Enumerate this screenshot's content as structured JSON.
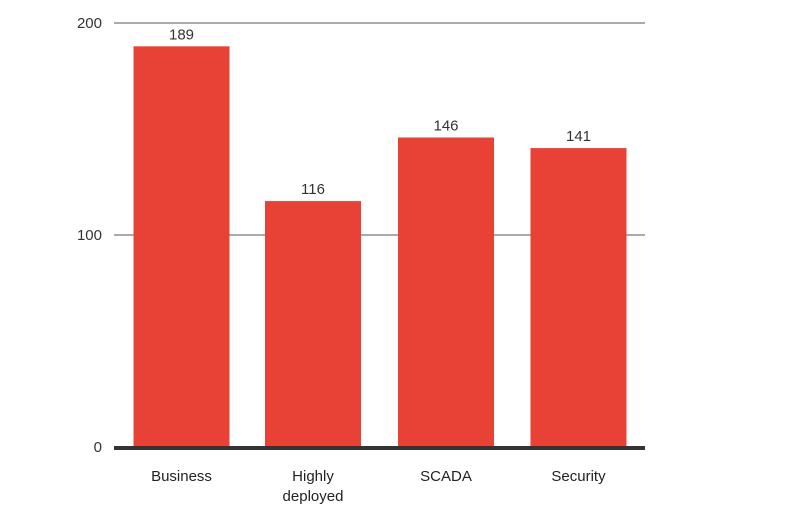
{
  "chart_data": {
    "type": "bar",
    "categories": [
      "Business",
      "Highly deployed",
      "SCADA",
      "Security"
    ],
    "category_lines": [
      [
        "Business"
      ],
      [
        "Highly",
        "deployed"
      ],
      [
        "SCADA"
      ],
      [
        "Security"
      ]
    ],
    "values": [
      189,
      116,
      146,
      141
    ],
    "ylim": [
      0,
      200
    ],
    "yticks": [
      0,
      100,
      200
    ],
    "ytick_labels": [
      "0",
      "100",
      "200"
    ],
    "title": "",
    "xlabel": "",
    "ylabel": "",
    "grid": true,
    "data_labels": true,
    "colors": {
      "bar": "#E84135",
      "grid": "#555555",
      "baseline": "#333333"
    }
  }
}
